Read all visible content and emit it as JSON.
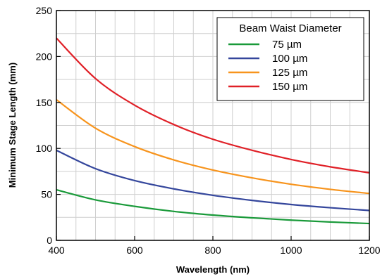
{
  "chart_data": {
    "type": "line",
    "xlabel": "Wavelength (nm)",
    "ylabel": "Minimum Stage Length (mm)",
    "xlim": [
      400,
      1200
    ],
    "ylim": [
      0,
      250
    ],
    "x_ticks": [
      400,
      600,
      800,
      1000,
      1200
    ],
    "y_ticks": [
      0,
      50,
      100,
      150,
      200,
      250
    ],
    "x_tick_labels": [
      "400",
      "600",
      "800",
      "1000",
      "1200"
    ],
    "y_tick_labels": [
      "0",
      "50",
      "100",
      "150",
      "200",
      "250"
    ],
    "grid": true,
    "legend": {
      "title": "Beam Waist Diameter",
      "placement": "top-right"
    },
    "x": [
      400,
      500,
      600,
      700,
      800,
      900,
      1000,
      1100,
      1200
    ],
    "series": [
      {
        "name": "75 µm",
        "color": "#1a9a3a",
        "values": [
          55,
          44,
          37,
          31.5,
          27.5,
          24.5,
          22,
          20,
          18.3
        ]
      },
      {
        "name": "100 µm",
        "color": "#34469c",
        "values": [
          98,
          78,
          65,
          56,
          49,
          43.5,
          39,
          35.5,
          32.5
        ]
      },
      {
        "name": "125 µm",
        "color": "#f7941d",
        "values": [
          153,
          122,
          102,
          87.5,
          76.5,
          68,
          61,
          55.5,
          51
        ]
      },
      {
        "name": "150 µm",
        "color": "#e02027",
        "values": [
          220,
          176,
          147,
          126,
          110,
          98,
          88,
          80,
          73.5
        ]
      }
    ]
  }
}
